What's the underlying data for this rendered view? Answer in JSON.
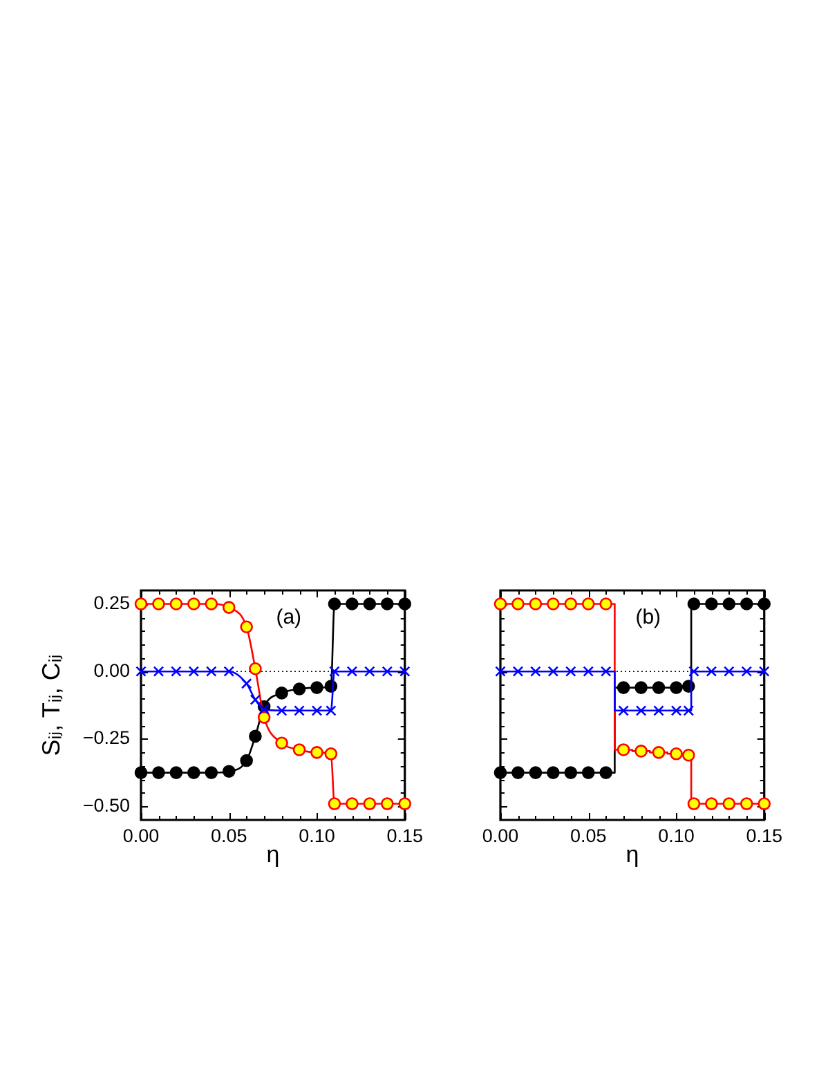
{
  "chart_data": [
    {
      "type": "line",
      "annotations": [
        "(a)"
      ],
      "xlabel": "η",
      "ylabel": "Sᵢⱼ, Tᵢⱼ, Cᵢⱼ",
      "xlim": [
        0,
        0.15
      ],
      "ylim": [
        -0.55,
        0.3
      ],
      "xticks": [
        {
          "value": 0,
          "label": "0.00"
        },
        {
          "value": 0.01,
          "label": null
        },
        {
          "value": 0.02,
          "label": null
        },
        {
          "value": 0.03,
          "label": null
        },
        {
          "value": 0.04,
          "label": null
        },
        {
          "value": 0.05,
          "label": "0.05"
        },
        {
          "value": 0.06,
          "label": null
        },
        {
          "value": 0.07,
          "label": null
        },
        {
          "value": 0.08,
          "label": null
        },
        {
          "value": 0.09,
          "label": null
        },
        {
          "value": 0.1,
          "label": "0.10"
        },
        {
          "value": 0.11,
          "label": null
        },
        {
          "value": 0.12,
          "label": null
        },
        {
          "value": 0.13,
          "label": null
        },
        {
          "value": 0.14,
          "label": null
        },
        {
          "value": 0.15,
          "label": "0.15"
        }
      ],
      "yticks": [
        {
          "value": -0.5,
          "label": "−0.50"
        },
        {
          "value": -0.45,
          "label": null
        },
        {
          "value": -0.4,
          "label": null
        },
        {
          "value": -0.35,
          "label": null
        },
        {
          "value": -0.3,
          "label": null
        },
        {
          "value": -0.25,
          "label": "−0.25"
        },
        {
          "value": -0.2,
          "label": null
        },
        {
          "value": -0.15,
          "label": null
        },
        {
          "value": -0.1,
          "label": null
        },
        {
          "value": -0.05,
          "label": null
        },
        {
          "value": 0,
          "label": "0.00"
        },
        {
          "value": 0.05,
          "label": null
        },
        {
          "value": 0.1,
          "label": null
        },
        {
          "value": 0.15,
          "label": null
        },
        {
          "value": 0.2,
          "label": null
        },
        {
          "value": 0.25,
          "label": "0.25"
        }
      ],
      "ref_lines": [
        {
          "axis": "y",
          "value": 0,
          "color": "#000000",
          "line_style": "dotted"
        }
      ],
      "series": [
        {
          "color": "#000000",
          "marker": "circle",
          "x": [
            0,
            0.01,
            0.02,
            0.03,
            0.04,
            0.05,
            0.06,
            0.065,
            0.07,
            0.08,
            0.09,
            0.1,
            0.108,
            0.11,
            0.12,
            0.13,
            0.14,
            0.15
          ],
          "values": [
            -0.375,
            -0.375,
            -0.375,
            -0.375,
            -0.375,
            -0.37,
            -0.33,
            -0.24,
            -0.13,
            -0.08,
            -0.065,
            -0.06,
            -0.055,
            0.25,
            0.25,
            0.25,
            0.25,
            0.25
          ]
        },
        {
          "color": "#ff0000",
          "colors": [
            "#ffff00",
            "#ffff00",
            "#ffff00",
            "#ffff00",
            "#ffff00",
            "#ffff00",
            "#ffff00",
            "#ffff00",
            "#ffff00",
            "#ffff00",
            "#ffff00",
            "#ffff00",
            "#ffff00",
            "#ffff00",
            "#ffff00",
            "#ffff00",
            "#ffff00",
            "#ffff00"
          ],
          "marker": "circle",
          "x": [
            0,
            0.01,
            0.02,
            0.03,
            0.04,
            0.05,
            0.06,
            0.065,
            0.07,
            0.08,
            0.09,
            0.1,
            0.108,
            0.11,
            0.12,
            0.13,
            0.14,
            0.15
          ],
          "values": [
            0.25,
            0.25,
            0.25,
            0.25,
            0.25,
            0.237,
            0.165,
            0.01,
            -0.17,
            -0.265,
            -0.29,
            -0.3,
            -0.305,
            -0.49,
            -0.49,
            -0.49,
            -0.49,
            -0.49
          ]
        },
        {
          "color": "#0000ff",
          "marker": "cross",
          "x": [
            0,
            0.01,
            0.02,
            0.03,
            0.04,
            0.05,
            0.06,
            0.065,
            0.07,
            0.08,
            0.09,
            0.1,
            0.108,
            0.11,
            0.12,
            0.13,
            0.14,
            0.15
          ],
          "values": [
            0,
            0,
            0,
            0,
            0,
            0,
            -0.045,
            -0.105,
            -0.14,
            -0.145,
            -0.145,
            -0.145,
            -0.145,
            0,
            0,
            0,
            0,
            0
          ]
        }
      ]
    },
    {
      "type": "step",
      "annotations": [
        "(b)"
      ],
      "xlabel": "η",
      "tick_labels": "x",
      "xlim": [
        0,
        0.15
      ],
      "ylim": [
        -0.55,
        0.3
      ],
      "xticks": [
        {
          "value": 0,
          "label": "0.00"
        },
        {
          "value": 0.01,
          "label": null
        },
        {
          "value": 0.02,
          "label": null
        },
        {
          "value": 0.03,
          "label": null
        },
        {
          "value": 0.04,
          "label": null
        },
        {
          "value": 0.05,
          "label": "0.05"
        },
        {
          "value": 0.06,
          "label": null
        },
        {
          "value": 0.07,
          "label": null
        },
        {
          "value": 0.08,
          "label": null
        },
        {
          "value": 0.09,
          "label": null
        },
        {
          "value": 0.1,
          "label": "0.10"
        },
        {
          "value": 0.11,
          "label": null
        },
        {
          "value": 0.12,
          "label": null
        },
        {
          "value": 0.13,
          "label": null
        },
        {
          "value": 0.14,
          "label": null
        },
        {
          "value": 0.15,
          "label": "0.15"
        }
      ],
      "yticks": [
        -0.5,
        {
          "value": -0.45,
          "label": null
        },
        {
          "value": -0.4,
          "label": null
        },
        {
          "value": -0.35,
          "label": null
        },
        {
          "value": -0.3,
          "label": null
        },
        -0.25,
        {
          "value": -0.2,
          "label": null
        },
        {
          "value": -0.15,
          "label": null
        },
        {
          "value": -0.1,
          "label": null
        },
        {
          "value": -0.05,
          "label": null
        },
        0,
        {
          "value": 0.05,
          "label": null
        },
        {
          "value": 0.1,
          "label": null
        },
        {
          "value": 0.15,
          "label": null
        },
        {
          "value": 0.2,
          "label": null
        },
        0.25
      ],
      "ref_lines": [
        {
          "axis": "y",
          "value": 0,
          "color": "#000000",
          "line_style": "dotted"
        }
      ],
      "series": [
        {
          "color": "#000000",
          "marker": "circle",
          "x": [
            0,
            0.01,
            0.02,
            0.03,
            0.04,
            0.05,
            0.06,
            0.07,
            0.08,
            0.09,
            0.1,
            0.107,
            0.11,
            0.12,
            0.13,
            0.14,
            0.15
          ],
          "values": [
            -0.375,
            -0.375,
            -0.375,
            -0.375,
            -0.375,
            -0.375,
            -0.375,
            -0.06,
            -0.06,
            -0.06,
            -0.06,
            -0.055,
            0.25,
            0.25,
            0.25,
            0.25,
            0.25
          ]
        },
        {
          "color": "#ff0000",
          "colors": [
            "#ffff00",
            "#ffff00",
            "#ffff00",
            "#ffff00",
            "#ffff00",
            "#ffff00",
            "#ffff00",
            "#ffff00",
            "#ffff00",
            "#ffff00",
            "#ffff00",
            "#ffff00",
            "#ffff00",
            "#ffff00",
            "#ffff00",
            "#ffff00",
            "#ffff00"
          ],
          "marker": "circle",
          "x": [
            0,
            0.01,
            0.02,
            0.03,
            0.04,
            0.05,
            0.06,
            0.07,
            0.08,
            0.09,
            0.1,
            0.107,
            0.11,
            0.12,
            0.13,
            0.14,
            0.15
          ],
          "values": [
            0.25,
            0.25,
            0.25,
            0.25,
            0.25,
            0.25,
            0.25,
            -0.29,
            -0.295,
            -0.3,
            -0.305,
            -0.31,
            -0.49,
            -0.49,
            -0.49,
            -0.49,
            -0.49
          ]
        },
        {
          "color": "#0000ff",
          "marker": "cross",
          "x": [
            0,
            0.01,
            0.02,
            0.03,
            0.04,
            0.05,
            0.06,
            0.07,
            0.08,
            0.09,
            0.1,
            0.107,
            0.11,
            0.12,
            0.13,
            0.14,
            0.15
          ],
          "values": [
            0,
            0,
            0,
            0,
            0,
            0,
            0,
            -0.145,
            -0.145,
            -0.145,
            -0.145,
            -0.145,
            0,
            0,
            0,
            0,
            0
          ]
        }
      ]
    }
  ]
}
